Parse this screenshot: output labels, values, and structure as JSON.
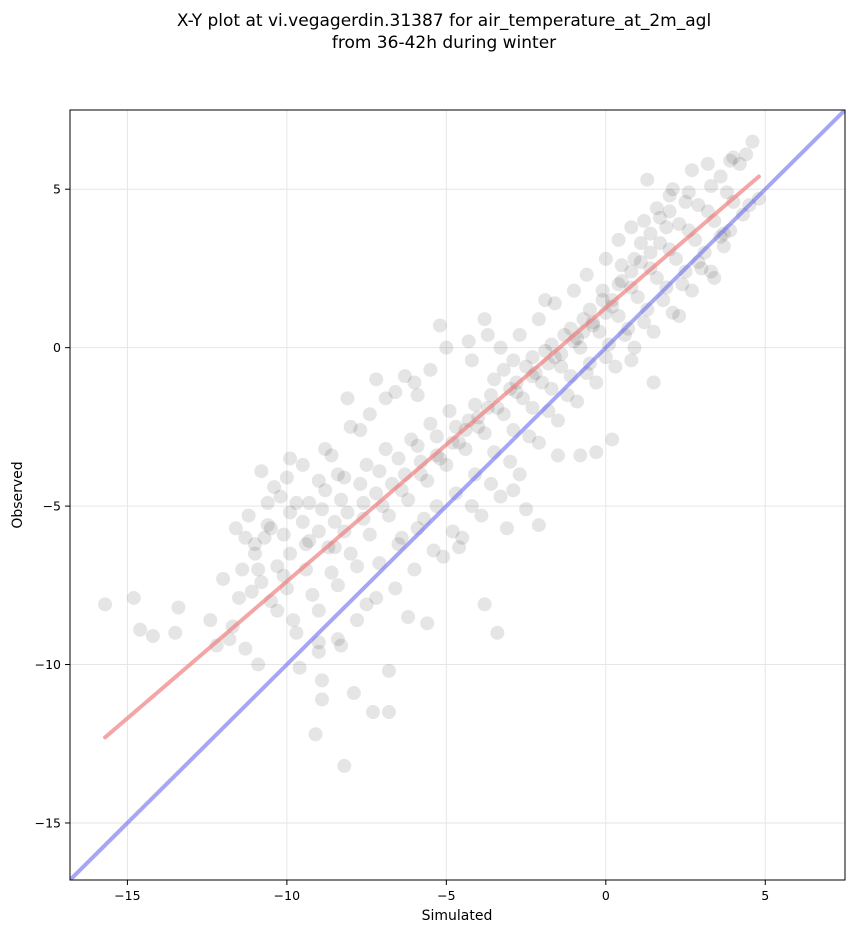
{
  "chart_data": {
    "type": "scatter",
    "title": [
      "X-Y plot at vi.vegagerdin.31387 for air_temperature_at_2m_agl",
      "from 36-42h during winter"
    ],
    "xlabel": "Simulated",
    "ylabel": "Observed",
    "xlim": [
      -16.8,
      7.5
    ],
    "ylim": [
      -16.8,
      7.5
    ],
    "xticks": [
      -15,
      -10,
      -5,
      0,
      5
    ],
    "yticks": [
      -15,
      -10,
      -5,
      0,
      5
    ],
    "xtick_labels": [
      "−15",
      "−10",
      "−5",
      "0",
      "5"
    ],
    "ytick_labels": [
      "−15",
      "−10",
      "−5",
      "0",
      "5"
    ],
    "grid": true,
    "colors": {
      "points": "#000000",
      "fit_line": "#f08080",
      "identity_line": "#6a6aee"
    },
    "fit_line": {
      "x": [
        -15.7,
        4.8
      ],
      "y": [
        -12.3,
        5.4
      ]
    },
    "identity_line": {
      "x": [
        -16.8,
        7.5
      ],
      "y": [
        -16.8,
        7.5
      ]
    },
    "series": [
      {
        "values": [
          [
            -15.7,
            -8.1
          ],
          [
            -14.8,
            -7.9
          ],
          [
            -14.6,
            -8.9
          ],
          [
            -14.2,
            -9.1
          ],
          [
            -13.5,
            -9.0
          ],
          [
            -13.4,
            -8.2
          ],
          [
            -12.4,
            -8.6
          ],
          [
            -12.0,
            -7.3
          ],
          [
            -11.7,
            -8.8
          ],
          [
            -11.4,
            -7.0
          ],
          [
            -11.3,
            -9.5
          ],
          [
            -11.2,
            -5.3
          ],
          [
            -11.0,
            -6.2
          ],
          [
            -10.9,
            -10.0
          ],
          [
            -10.8,
            -3.9
          ],
          [
            -10.6,
            -5.6
          ],
          [
            -10.4,
            -4.4
          ],
          [
            -10.2,
            -4.7
          ],
          [
            -10.1,
            -7.2
          ],
          [
            -9.9,
            -3.5
          ],
          [
            -9.7,
            -4.9
          ],
          [
            -9.6,
            -10.1
          ],
          [
            -9.3,
            -6.1
          ],
          [
            -9.1,
            -12.2
          ],
          [
            -9.0,
            -4.2
          ],
          [
            -9.0,
            -9.3
          ],
          [
            -8.9,
            -11.1
          ],
          [
            -8.9,
            -10.5
          ],
          [
            -8.6,
            -3.4
          ],
          [
            -8.5,
            -6.3
          ],
          [
            -8.4,
            -4.0
          ],
          [
            -8.3,
            -9.4
          ],
          [
            -8.2,
            -13.2
          ],
          [
            -8.1,
            -1.6
          ],
          [
            -7.9,
            -10.9
          ],
          [
            -7.7,
            -2.6
          ],
          [
            -7.5,
            -8.1
          ],
          [
            -7.3,
            -11.5
          ],
          [
            -7.2,
            -1.0
          ],
          [
            -6.8,
            -11.5
          ],
          [
            -6.8,
            -10.2
          ],
          [
            -6.6,
            -1.4
          ],
          [
            -6.3,
            -0.9
          ],
          [
            -6.2,
            -8.5
          ],
          [
            -5.9,
            -1.5
          ],
          [
            -5.6,
            -8.7
          ],
          [
            -5.2,
            0.7
          ],
          [
            -4.6,
            -6.3
          ],
          [
            -4.2,
            -0.4
          ],
          [
            -3.8,
            0.9
          ],
          [
            -3.8,
            -8.1
          ],
          [
            -3.4,
            -9.0
          ],
          [
            -3.1,
            -5.7
          ],
          [
            -2.9,
            -4.5
          ],
          [
            -2.5,
            -5.1
          ],
          [
            -2.1,
            -5.6
          ],
          [
            -1.9,
            1.5
          ],
          [
            -1.5,
            -3.4
          ],
          [
            -0.8,
            -3.4
          ],
          [
            -0.3,
            -3.3
          ],
          [
            0.2,
            -2.9
          ],
          [
            0.8,
            -0.4
          ],
          [
            1.5,
            -1.1
          ],
          [
            1.3,
            5.3
          ],
          [
            2.0,
            4.8
          ],
          [
            2.3,
            1.0
          ],
          [
            2.9,
            2.7
          ],
          [
            3.4,
            2.2
          ],
          [
            3.6,
            3.5
          ],
          [
            3.7,
            3.2
          ],
          [
            4.2,
            5.8
          ],
          [
            4.6,
            6.5
          ],
          [
            4.8,
            4.7
          ],
          [
            4.4,
            6.1
          ],
          [
            3.9,
            5.9
          ],
          [
            3.3,
            5.1
          ],
          [
            2.5,
            4.6
          ],
          [
            1.9,
            3.8
          ],
          [
            1.4,
            3.0
          ],
          [
            0.9,
            2.8
          ],
          [
            0.4,
            2.0
          ],
          [
            0.0,
            1.1
          ],
          [
            -0.4,
            0.7
          ],
          [
            -0.9,
            0.3
          ],
          [
            -1.4,
            -0.2
          ],
          [
            -1.8,
            -0.5
          ],
          [
            -2.3,
            -0.9
          ],
          [
            -2.8,
            -1.1
          ],
          [
            -3.2,
            -0.7
          ],
          [
            -3.6,
            -1.5
          ],
          [
            -4.0,
            -2.2
          ],
          [
            -4.4,
            -2.6
          ],
          [
            -4.8,
            -3.0
          ],
          [
            -5.3,
            -3.4
          ],
          [
            -5.8,
            -3.6
          ],
          [
            -6.3,
            -4.0
          ],
          [
            -6.7,
            -4.3
          ],
          [
            -7.2,
            -4.6
          ],
          [
            -7.6,
            -4.9
          ],
          [
            -8.1,
            -5.2
          ],
          [
            -8.5,
            -5.5
          ],
          [
            -9.0,
            -5.8
          ],
          [
            -9.4,
            -6.2
          ],
          [
            -9.9,
            -6.5
          ],
          [
            -10.3,
            -6.9
          ],
          [
            -10.8,
            -7.4
          ],
          [
            -10.5,
            -8.0
          ],
          [
            -9.8,
            -8.6
          ],
          [
            -9.2,
            -7.8
          ],
          [
            -8.6,
            -7.1
          ],
          [
            -8.0,
            -6.5
          ],
          [
            -7.4,
            -5.9
          ],
          [
            -6.8,
            -5.3
          ],
          [
            -6.2,
            -4.8
          ],
          [
            -5.6,
            -4.2
          ],
          [
            -5.0,
            -3.7
          ],
          [
            -4.4,
            -3.2
          ],
          [
            -3.8,
            -2.7
          ],
          [
            -3.2,
            -2.1
          ],
          [
            -2.6,
            -1.6
          ],
          [
            -2.0,
            -1.1
          ],
          [
            -1.4,
            -0.6
          ],
          [
            -0.8,
            0.0
          ],
          [
            -0.2,
            0.5
          ],
          [
            0.4,
            1.0
          ],
          [
            1.0,
            1.6
          ],
          [
            1.6,
            2.2
          ],
          [
            2.2,
            2.8
          ],
          [
            2.8,
            3.4
          ],
          [
            3.4,
            4.0
          ],
          [
            4.0,
            4.6
          ],
          [
            2.6,
            4.9
          ],
          [
            2.0,
            4.3
          ],
          [
            1.4,
            3.6
          ],
          [
            0.8,
            2.4
          ],
          [
            0.2,
            1.5
          ],
          [
            -0.5,
            1.2
          ],
          [
            -1.1,
            0.6
          ],
          [
            -1.7,
            0.1
          ],
          [
            -2.3,
            -0.3
          ],
          [
            -2.9,
            -0.4
          ],
          [
            -3.5,
            -1.0
          ],
          [
            -4.1,
            -1.8
          ],
          [
            -4.7,
            -2.5
          ],
          [
            -5.3,
            -2.8
          ],
          [
            -5.9,
            -3.1
          ],
          [
            -6.5,
            -3.5
          ],
          [
            -7.1,
            -3.9
          ],
          [
            -7.7,
            -4.3
          ],
          [
            -8.3,
            -4.8
          ],
          [
            -8.9,
            -5.1
          ],
          [
            -9.5,
            -5.5
          ],
          [
            -10.1,
            -5.9
          ],
          [
            -10.7,
            -6.0
          ],
          [
            -11.1,
            -7.7
          ],
          [
            -10.3,
            -8.3
          ],
          [
            -9.7,
            -9.0
          ],
          [
            -9.0,
            -8.3
          ],
          [
            -8.4,
            -7.5
          ],
          [
            -7.8,
            -6.9
          ],
          [
            -7.1,
            -6.8
          ],
          [
            -6.5,
            -6.2
          ],
          [
            -5.9,
            -5.7
          ],
          [
            -5.3,
            -5.0
          ],
          [
            -4.7,
            -4.6
          ],
          [
            -4.1,
            -4.0
          ],
          [
            -3.5,
            -3.3
          ],
          [
            -2.9,
            -2.6
          ],
          [
            -2.3,
            -1.9
          ],
          [
            -1.7,
            -1.3
          ],
          [
            -1.1,
            -0.9
          ],
          [
            -0.5,
            -0.5
          ],
          [
            0.1,
            0.1
          ],
          [
            0.7,
            0.6
          ],
          [
            1.3,
            1.2
          ],
          [
            1.9,
            1.9
          ],
          [
            2.5,
            2.4
          ],
          [
            3.1,
            3.0
          ],
          [
            3.7,
            3.6
          ],
          [
            4.3,
            4.2
          ],
          [
            1.7,
            4.1
          ],
          [
            1.1,
            3.3
          ],
          [
            0.5,
            2.6
          ],
          [
            -0.1,
            1.8
          ],
          [
            -0.7,
            0.9
          ],
          [
            -1.3,
            0.4
          ],
          [
            -1.9,
            -0.1
          ],
          [
            -2.5,
            -0.6
          ],
          [
            -3.0,
            -1.3
          ],
          [
            -3.7,
            -1.9
          ],
          [
            -4.3,
            -2.3
          ],
          [
            -4.9,
            -2.0
          ],
          [
            -5.5,
            -2.4
          ],
          [
            -6.1,
            -2.9
          ],
          [
            -6.9,
            -3.2
          ],
          [
            -7.5,
            -3.7
          ],
          [
            -8.2,
            -4.1
          ],
          [
            -8.8,
            -4.5
          ],
          [
            -9.3,
            -4.9
          ],
          [
            -9.9,
            -5.2
          ],
          [
            -10.5,
            -5.7
          ],
          [
            -11.0,
            -6.5
          ],
          [
            -10.9,
            -7.0
          ],
          [
            -10.0,
            -7.6
          ],
          [
            -9.4,
            -7.0
          ],
          [
            -8.7,
            -6.3
          ],
          [
            -8.2,
            -5.8
          ],
          [
            -7.6,
            -5.4
          ],
          [
            -7.0,
            -5.0
          ],
          [
            -6.4,
            -4.5
          ],
          [
            -5.8,
            -4.0
          ],
          [
            -5.2,
            -3.5
          ],
          [
            -4.6,
            -3.0
          ],
          [
            -4.0,
            -2.5
          ],
          [
            -3.4,
            -1.9
          ],
          [
            -2.8,
            -1.4
          ],
          [
            -2.2,
            -0.8
          ],
          [
            -1.6,
            -0.3
          ],
          [
            -1.0,
            0.2
          ],
          [
            -0.4,
            0.8
          ],
          [
            0.2,
            1.3
          ],
          [
            0.8,
            1.9
          ],
          [
            1.4,
            2.5
          ],
          [
            2.0,
            3.1
          ],
          [
            2.6,
            3.7
          ],
          [
            3.2,
            4.3
          ],
          [
            3.8,
            4.9
          ],
          [
            2.9,
            4.5
          ],
          [
            2.3,
            3.9
          ],
          [
            1.7,
            3.3
          ],
          [
            1.1,
            2.7
          ],
          [
            0.5,
            2.1
          ],
          [
            -0.1,
            1.5
          ],
          [
            -0.7,
            0.5
          ],
          [
            0.6,
            0.4
          ],
          [
            1.2,
            0.8
          ],
          [
            1.8,
            1.5
          ],
          [
            2.4,
            2.0
          ],
          [
            3.0,
            2.5
          ],
          [
            0.0,
            -0.3
          ],
          [
            -0.6,
            -0.8
          ],
          [
            -1.2,
            -1.5
          ],
          [
            -1.8,
            -2.0
          ],
          [
            -2.4,
            -2.8
          ],
          [
            -3.0,
            -3.6
          ],
          [
            -3.6,
            -4.3
          ],
          [
            -4.2,
            -5.0
          ],
          [
            -4.8,
            -5.8
          ],
          [
            -5.4,
            -6.4
          ],
          [
            -6.0,
            -7.0
          ],
          [
            -6.6,
            -7.6
          ],
          [
            -7.2,
            -7.9
          ],
          [
            -7.8,
            -8.6
          ],
          [
            -8.4,
            -9.2
          ],
          [
            -9.0,
            -9.6
          ],
          [
            -6.4,
            -6.0
          ],
          [
            -5.7,
            -5.4
          ],
          [
            -5.1,
            -6.6
          ],
          [
            -4.5,
            -6.0
          ],
          [
            -3.9,
            -5.3
          ],
          [
            -3.3,
            -4.7
          ],
          [
            -2.7,
            -4.0
          ],
          [
            -2.1,
            -3.0
          ],
          [
            -1.5,
            -2.3
          ],
          [
            -0.9,
            -1.7
          ],
          [
            -0.3,
            -1.1
          ],
          [
            0.3,
            -0.6
          ],
          [
            0.9,
            0.0
          ],
          [
            1.5,
            0.5
          ],
          [
            2.1,
            1.1
          ],
          [
            2.7,
            1.8
          ],
          [
            3.3,
            2.4
          ],
          [
            3.9,
            3.7
          ],
          [
            4.5,
            4.5
          ],
          [
            -12.2,
            -9.4
          ],
          [
            -11.8,
            -9.2
          ],
          [
            -11.5,
            -7.9
          ],
          [
            -11.6,
            -5.7
          ],
          [
            -11.3,
            -6.0
          ],
          [
            -10.6,
            -4.9
          ],
          [
            -10.0,
            -4.1
          ],
          [
            -9.5,
            -3.7
          ],
          [
            -8.8,
            -3.2
          ],
          [
            -8.0,
            -2.5
          ],
          [
            -7.4,
            -2.1
          ],
          [
            -6.9,
            -1.6
          ],
          [
            -6.0,
            -1.1
          ],
          [
            -5.5,
            -0.7
          ],
          [
            -5.0,
            0.0
          ],
          [
            -4.3,
            0.2
          ],
          [
            -3.7,
            0.4
          ],
          [
            -3.3,
            0.0
          ],
          [
            -2.7,
            0.4
          ],
          [
            -2.1,
            0.9
          ],
          [
            -1.6,
            1.4
          ],
          [
            -1.0,
            1.8
          ],
          [
            -0.6,
            2.3
          ],
          [
            0.0,
            2.8
          ],
          [
            0.4,
            3.4
          ],
          [
            0.8,
            3.8
          ],
          [
            1.2,
            4.0
          ],
          [
            1.6,
            4.4
          ],
          [
            2.1,
            5.0
          ],
          [
            2.7,
            5.6
          ],
          [
            3.2,
            5.8
          ],
          [
            3.6,
            5.4
          ],
          [
            4.0,
            6.0
          ]
        ]
      }
    ]
  }
}
